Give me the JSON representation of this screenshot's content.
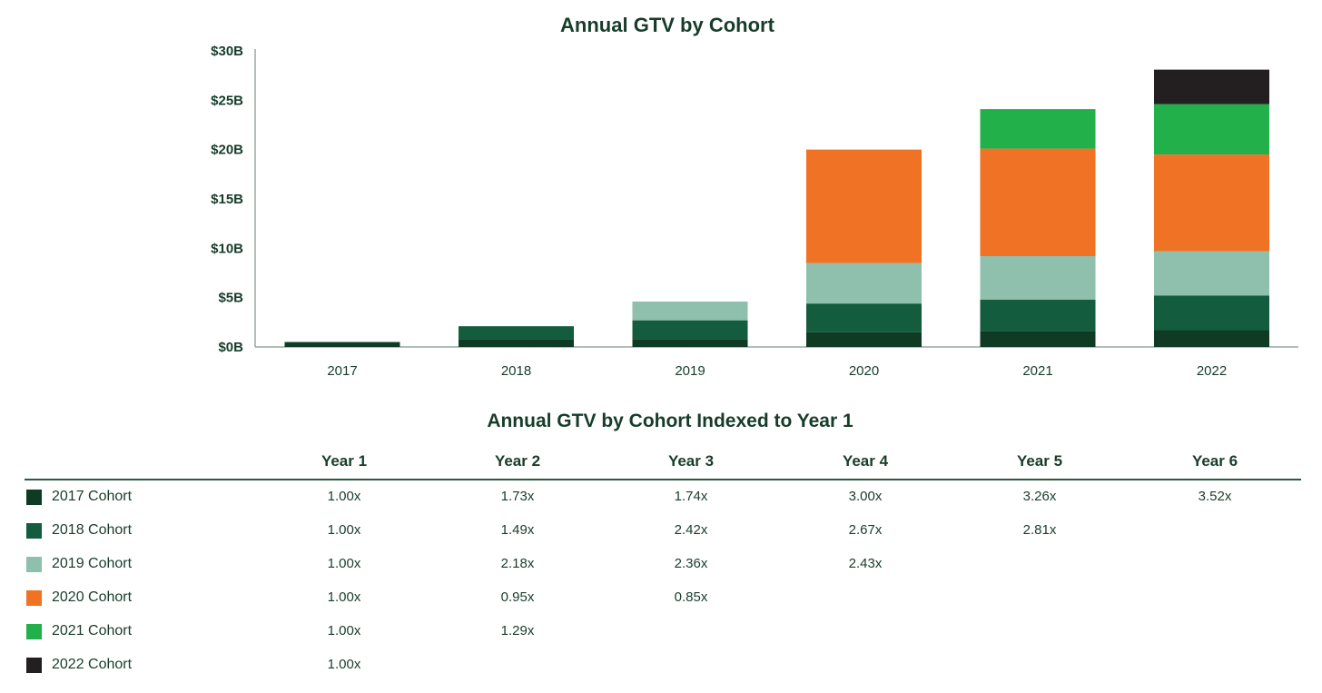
{
  "chart_data": {
    "type": "bar",
    "stacked": true,
    "title": "Annual GTV by Cohort",
    "categories": [
      "2017",
      "2018",
      "2019",
      "2020",
      "2021",
      "2022"
    ],
    "y_ticks": [
      "$0B",
      "$5B",
      "$10B",
      "$15B",
      "$20B",
      "$25B",
      "$30B"
    ],
    "ylim": [
      0,
      30
    ],
    "grid": false,
    "series": [
      {
        "name": "2017 Cohort",
        "color": "#0f3b24",
        "values": [
          0.5,
          0.8,
          0.8,
          1.5,
          1.6,
          1.7
        ]
      },
      {
        "name": "2018 Cohort",
        "color": "#135c3e",
        "values": [
          0,
          1.3,
          1.9,
          2.9,
          3.2,
          3.5
        ]
      },
      {
        "name": "2019 Cohort",
        "color": "#8fbfad",
        "values": [
          0,
          0,
          1.9,
          4.1,
          4.4,
          4.5
        ]
      },
      {
        "name": "2020 Cohort",
        "color": "#f07224",
        "values": [
          0,
          0,
          0,
          11.5,
          10.9,
          9.8
        ]
      },
      {
        "name": "2021 Cohort",
        "color": "#22b04b",
        "values": [
          0,
          0,
          0,
          0,
          4.0,
          5.1
        ]
      },
      {
        "name": "2022 Cohort",
        "color": "#231f20",
        "values": [
          0,
          0,
          0,
          0,
          0,
          3.5
        ]
      }
    ]
  },
  "index_table": {
    "title": "Annual GTV by Cohort Indexed to Year 1",
    "headers": [
      "Year 1",
      "Year 2",
      "Year 3",
      "Year 4",
      "Year 5",
      "Year 6"
    ],
    "rows": [
      {
        "label": "2017 Cohort",
        "color": "#0f3b24",
        "values": [
          "1.00x",
          "1.73x",
          "1.74x",
          "3.00x",
          "3.26x",
          "3.52x"
        ]
      },
      {
        "label": "2018 Cohort",
        "color": "#135c3e",
        "values": [
          "1.00x",
          "1.49x",
          "2.42x",
          "2.67x",
          "2.81x",
          ""
        ]
      },
      {
        "label": "2019 Cohort",
        "color": "#8fbfad",
        "values": [
          "1.00x",
          "2.18x",
          "2.36x",
          "2.43x",
          "",
          ""
        ]
      },
      {
        "label": "2020 Cohort",
        "color": "#f07224",
        "values": [
          "1.00x",
          "0.95x",
          "0.85x",
          "",
          "",
          ""
        ]
      },
      {
        "label": "2021 Cohort",
        "color": "#22b04b",
        "values": [
          "1.00x",
          "1.29x",
          "",
          "",
          "",
          ""
        ]
      },
      {
        "label": "2022 Cohort",
        "color": "#231f20",
        "values": [
          "1.00x",
          "",
          "",
          "",
          "",
          ""
        ]
      }
    ]
  }
}
